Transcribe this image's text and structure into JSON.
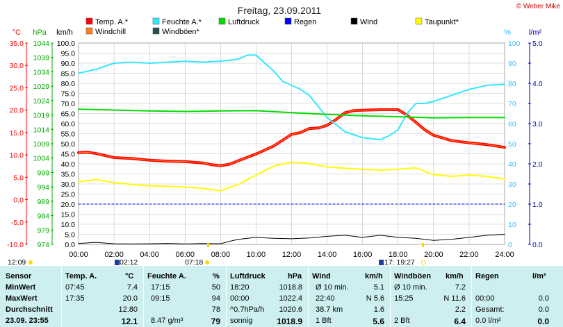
{
  "header": {
    "title": "Freitag, 23.09.2011",
    "credit": "© Weber Mike"
  },
  "legend": [
    {
      "label": "Temp. A.*",
      "color": "#ff0000"
    },
    {
      "label": "Feuchte A.*",
      "color": "#33e6ff"
    },
    {
      "label": "Luftdruck",
      "color": "#00dd00"
    },
    {
      "label": "Regen",
      "color": "#0000ff"
    },
    {
      "label": "Wind",
      "color": "#000000"
    },
    {
      "label": "Taupunkt*",
      "color": "#ffff00"
    },
    {
      "label": "Windchill",
      "color": "#ff7f1e"
    },
    {
      "label": "Windböen*",
      "color": "#2f4f4f"
    }
  ],
  "axes": {
    "temp_unit": "°C",
    "press_unit": "hPa",
    "wind_unit": "km/h",
    "hum_unit": "%",
    "rain_unit": "l/m²",
    "temp_ticks": [
      "35.0",
      "30.0",
      "25.0",
      "20.0",
      "15.0",
      "10.0",
      "5.0",
      "0.0",
      "-5.0",
      "-10.0"
    ],
    "press_ticks": [
      "1044",
      "1039",
      "1034",
      "1029",
      "1024",
      "1019",
      "1014",
      "1009",
      "1004",
      "999",
      "994",
      "989",
      "984",
      "979",
      "974"
    ],
    "wind_ticks": [
      "100.0",
      "95.0",
      "90.0",
      "85.0",
      "80.0",
      "75.0",
      "70.0",
      "65.0",
      "60.0",
      "55.0",
      "50.0",
      "45.0",
      "40.0",
      "35.0",
      "30.0",
      "25.0",
      "20.0",
      "15.0",
      "10.0",
      "5.0",
      "0.0"
    ],
    "hum_ticks": [
      "100",
      "90",
      "80",
      "70",
      "60",
      "50",
      "40",
      "30",
      "20",
      "10",
      "0"
    ],
    "rain_ticks": [
      "5.0",
      "4.0",
      "3.0",
      "2.0",
      "1.0",
      "0.0"
    ],
    "x_ticks": [
      "00:00",
      "02:00",
      "04:00",
      "06:00",
      "08:00",
      "10:00",
      "12:00",
      "14:00",
      "16:00",
      "18:00",
      "20:00",
      "22:00",
      "24:00"
    ]
  },
  "markers": {
    "sunrise_time": "12:09",
    "moon_time": "02:12",
    "sun_time": "07:18",
    "moon2_time": "17: 19:27"
  },
  "chart_data": {
    "type": "line",
    "x_unit": "hour",
    "xlim": [
      0,
      24
    ],
    "series": [
      {
        "name": "Temp. A.*",
        "axis": "temp",
        "color": "#ff0000",
        "x": [
          0,
          0.5,
          1,
          2,
          3,
          4,
          5,
          6,
          7,
          7.5,
          8,
          8.5,
          9,
          10,
          11,
          12,
          12.5,
          13,
          13.5,
          14,
          14.5,
          15,
          15.5,
          16,
          17,
          18,
          18.5,
          19,
          19.5,
          20,
          20.5,
          21,
          22,
          23,
          24
        ],
        "y": [
          10.5,
          10.6,
          10.3,
          9.4,
          9.2,
          8.8,
          8.6,
          8.5,
          8.2,
          7.8,
          7.6,
          7.9,
          8.7,
          10.2,
          12.0,
          14.6,
          15.0,
          15.9,
          16.0,
          16.6,
          17.9,
          19.4,
          19.9,
          20.0,
          20.1,
          20.1,
          18.9,
          17.3,
          15.6,
          14.4,
          13.8,
          13.2,
          12.7,
          12.3,
          11.7
        ]
      },
      {
        "name": "Feuchte A.*",
        "axis": "hum",
        "color": "#33e6ff",
        "x": [
          0,
          1,
          2,
          3,
          4,
          5,
          6,
          7,
          8,
          9,
          9.5,
          10,
          10.5,
          11,
          11.5,
          12,
          12.5,
          13,
          14,
          15,
          16,
          17,
          17.5,
          18,
          18.5,
          19,
          19.5,
          20,
          21,
          22,
          23,
          24
        ],
        "y": [
          85,
          87,
          90,
          90.5,
          90,
          90.5,
          91,
          90.5,
          91,
          92,
          94,
          94,
          90,
          86,
          81,
          79,
          77,
          74,
          63,
          56,
          53,
          52,
          54,
          57,
          65,
          70,
          70,
          71,
          74,
          77,
          79,
          79.5
        ]
      },
      {
        "name": "Luftdruck",
        "axis": "press",
        "color": "#00dd00",
        "x": [
          0,
          2,
          4,
          6,
          8,
          10,
          12,
          14,
          16,
          18,
          20,
          22,
          24
        ],
        "y": [
          1021.0,
          1020.7,
          1020.4,
          1020.2,
          1020.4,
          1020.5,
          1019.8,
          1019.2,
          1018.7,
          1018.4,
          1018.0,
          1018.1,
          1018.1
        ]
      },
      {
        "name": "Taupunkt*",
        "axis": "temp",
        "color": "#ffff00",
        "x": [
          0,
          1,
          2,
          3,
          4,
          5,
          6,
          7,
          8,
          9,
          10,
          11,
          12,
          13,
          14,
          15,
          16,
          17,
          18,
          19,
          20,
          21,
          22,
          23,
          24
        ],
        "y": [
          4.0,
          4.5,
          3.8,
          3.4,
          3.1,
          3.0,
          2.8,
          2.5,
          2.0,
          3.4,
          5.5,
          7.5,
          8.4,
          8.1,
          7.3,
          7.0,
          6.8,
          6.6,
          6.8,
          7.1,
          5.6,
          5.2,
          5.5,
          5.2,
          4.6
        ]
      },
      {
        "name": "Wind",
        "axis": "wind",
        "color": "#000000",
        "x": [
          0,
          1,
          2,
          3,
          4,
          5,
          6,
          7,
          8,
          8.5,
          9,
          10,
          11,
          12,
          13,
          14,
          15,
          16,
          17,
          18,
          19,
          20,
          21,
          22,
          23,
          24
        ],
        "y": [
          0.5,
          1,
          0.3,
          0.2,
          0.3,
          0.5,
          0.2,
          0.4,
          0.3,
          1.5,
          2.5,
          3.5,
          3.0,
          2.8,
          3.2,
          4.0,
          4.5,
          3.5,
          4.5,
          3.5,
          3.0,
          2.0,
          2.5,
          3.5,
          4.5,
          5.0
        ]
      },
      {
        "name": "Regen",
        "axis": "rain",
        "color": "#0000ff",
        "x": [
          0,
          24
        ],
        "y": [
          1.0,
          1.0
        ]
      }
    ]
  },
  "table": {
    "headers": {
      "sensor": "Sensor",
      "temp": "Temp. A.",
      "temp_unit": "°C",
      "hum": "Feuchte A.",
      "hum_unit": "%",
      "press": "Luftdruck",
      "press_unit": "hPa",
      "wind": "Wind",
      "wind_unit": "km/h",
      "gust": "Windböen",
      "gust_unit": "km/h",
      "rain": "Regen",
      "rain_unit": "l/m²"
    },
    "rows": [
      {
        "label": "MinWert",
        "temp_time": "07:45",
        "temp_val": "7.4",
        "hum_time": "17:15",
        "hum_val": "50",
        "press_time": "18:20",
        "press_val": "1018.8",
        "wind_a": "Ø 10 min.",
        "wind_b": "5.1",
        "gust_a": "Ø 10 min.",
        "gust_b": "7.2",
        "rain_a": "",
        "rain_b": ""
      },
      {
        "label": "MaxWert",
        "temp_time": "17:35",
        "temp_val": "20.0",
        "hum_time": "09:15",
        "hum_val": "94",
        "press_time": "00:00",
        "press_val": "1022.4",
        "wind_a": "22:40",
        "wind_b": "N 5.6",
        "gust_a": "15:25",
        "gust_b": "N 11.6",
        "rain_a": "00:00",
        "rain_b": "0.0"
      },
      {
        "label": "Durchschnitt",
        "temp_time": "",
        "temp_val": "12.80",
        "hum_time": "",
        "hum_val": "78",
        "press_time": "^0.7hPa/h",
        "press_val": "1020.6",
        "wind_a": "38.7 km",
        "wind_b": "1.6",
        "gust_a": "",
        "gust_b": "2.2",
        "rain_a": "Gesamt:",
        "rain_b": "0.0"
      },
      {
        "label": "23.09. 23:55",
        "temp_time": "",
        "temp_val": "12.1",
        "hum_time": "8.47 g/m³",
        "hum_val": "79",
        "press_time": "sonnig",
        "press_val": "1018.9",
        "wind_a": "1 Bft",
        "wind_b": "5.6",
        "gust_a": "2 Bft",
        "gust_b": "6.4",
        "rain_a": "0.0 l/m²",
        "rain_b": "0.0"
      }
    ]
  }
}
